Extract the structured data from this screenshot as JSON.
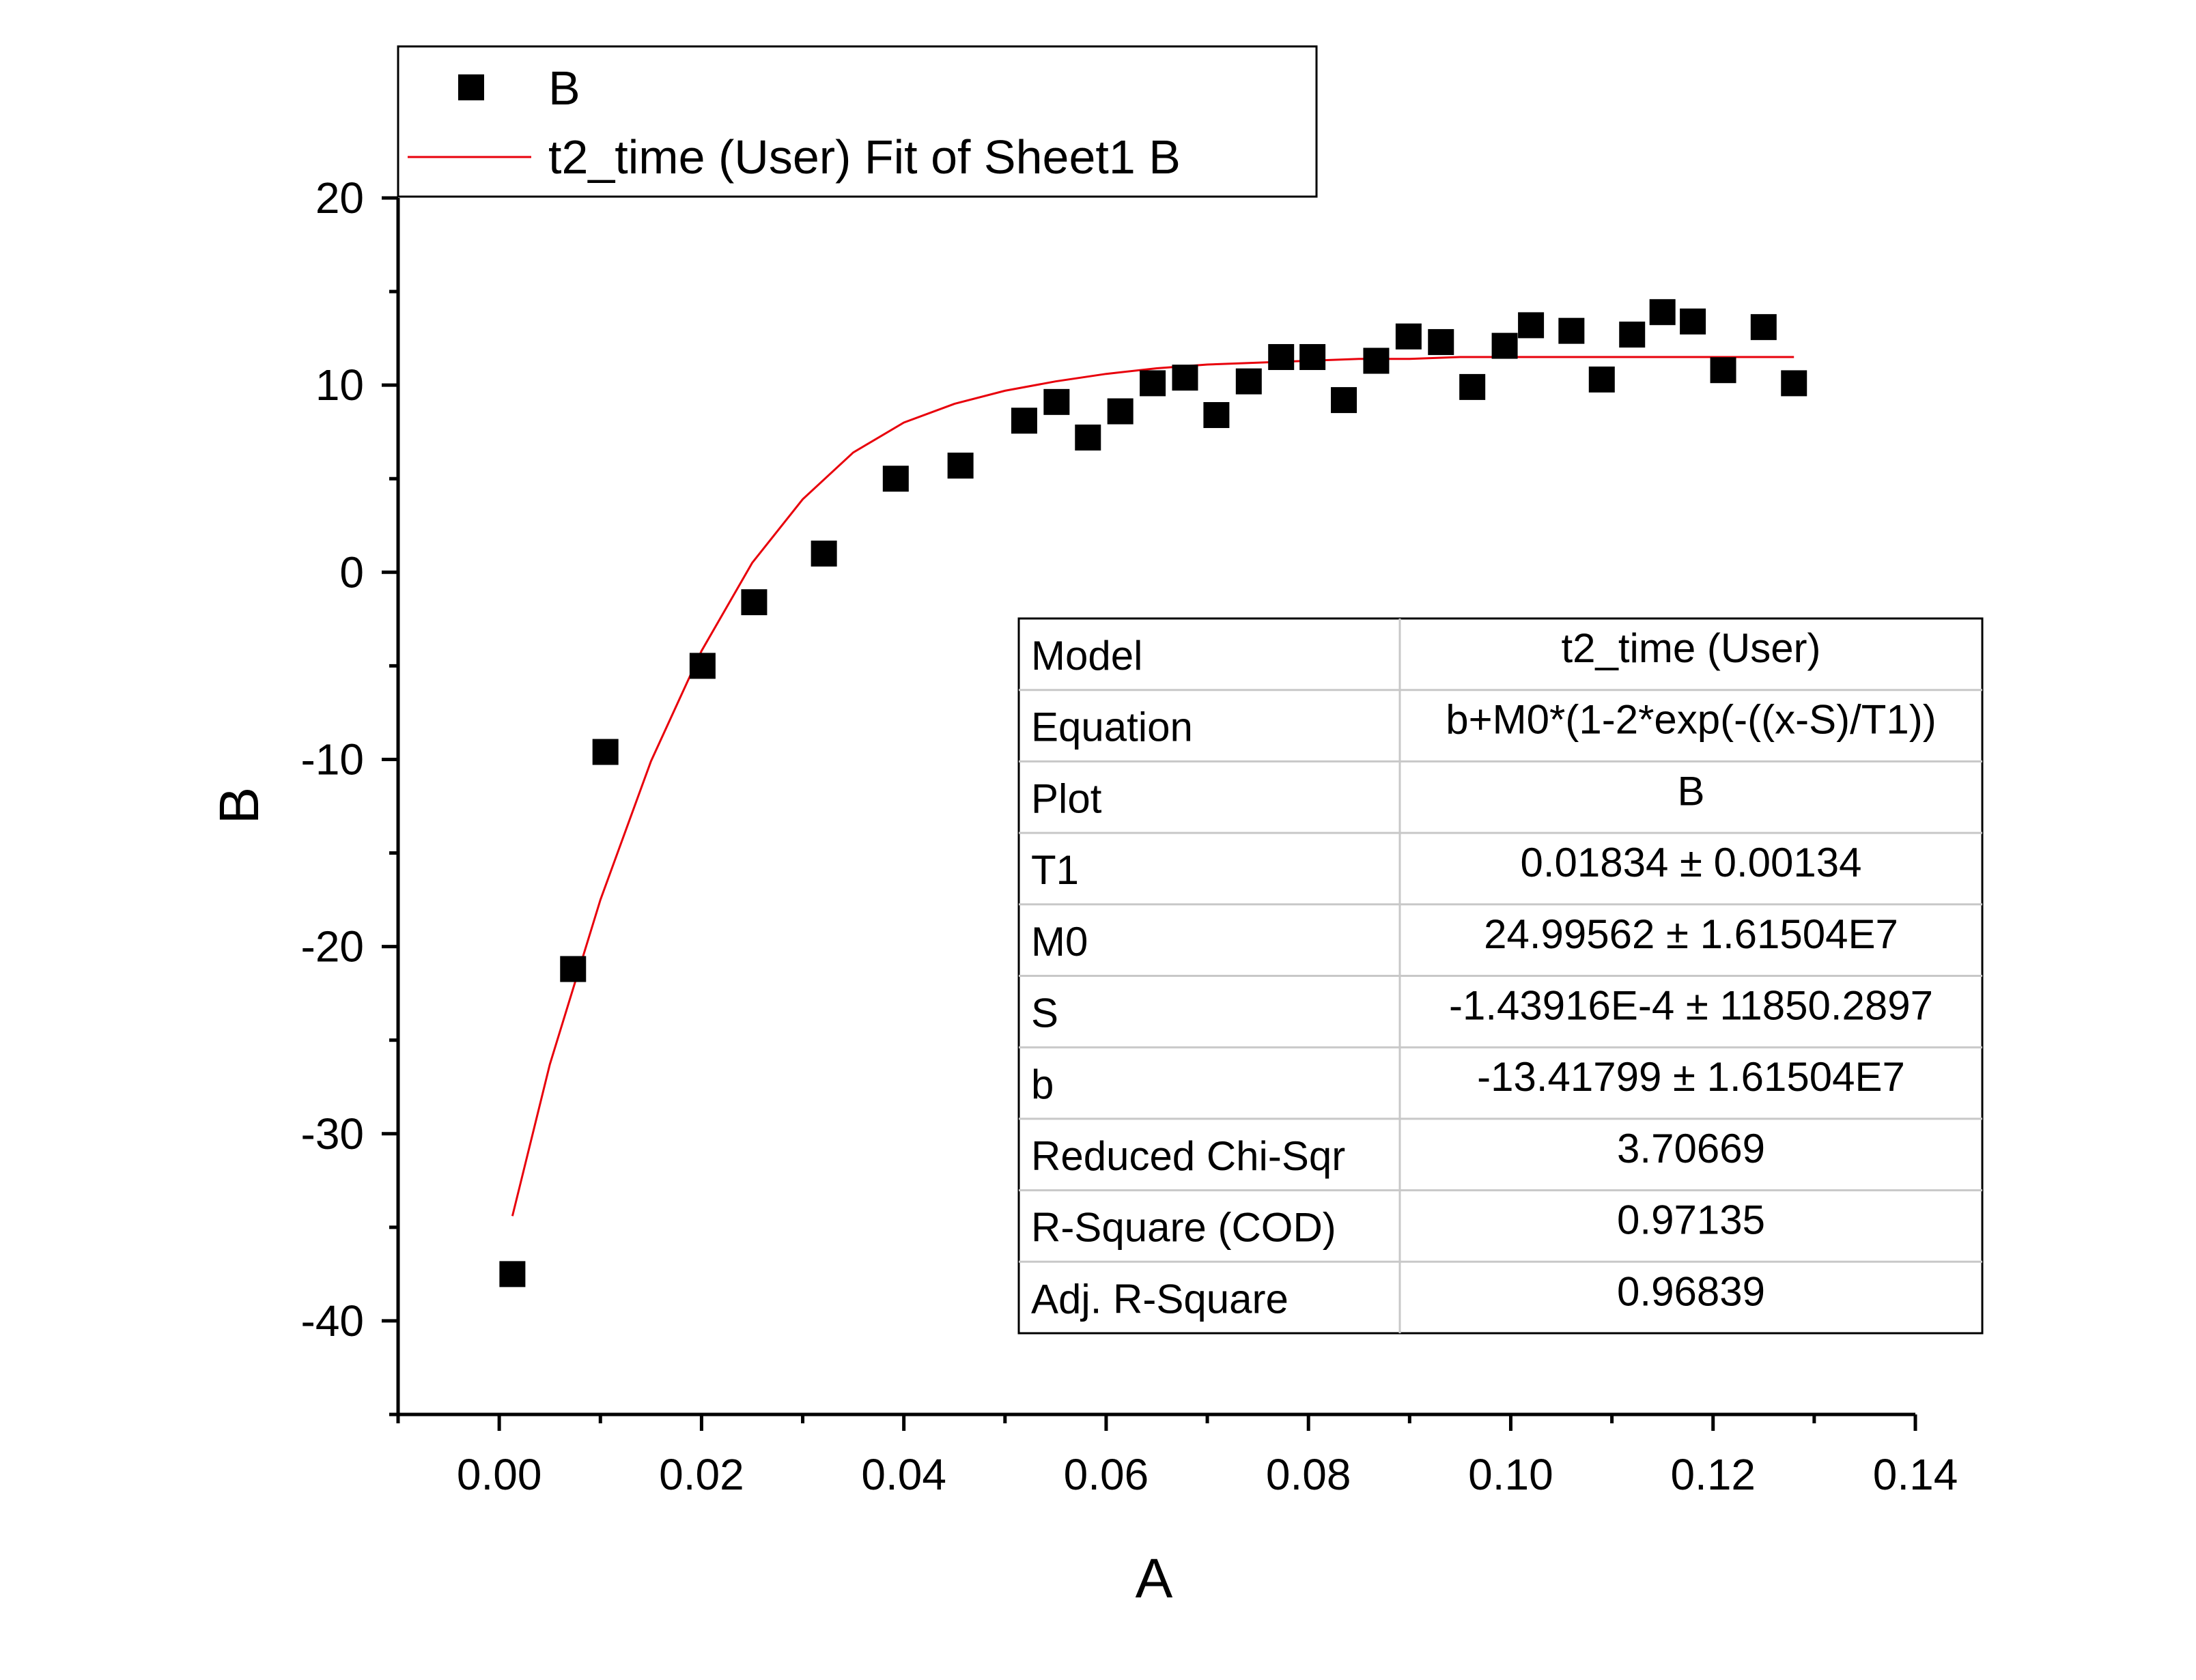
{
  "chart_data": {
    "type": "scatter",
    "xlabel": "A",
    "ylabel": "B",
    "xlim": [
      -0.01,
      0.14
    ],
    "ylim": [
      -45,
      20
    ],
    "x_ticks": [
      "0.00",
      "0.02",
      "0.04",
      "0.06",
      "0.08",
      "0.10",
      "0.12",
      "0.14"
    ],
    "y_ticks": [
      "20",
      "10",
      "0",
      "-10",
      "-20",
      "-30",
      "-40"
    ],
    "grid": false,
    "legend_position": "top-left",
    "legend": [
      {
        "label": "B",
        "marker": "square",
        "color": "#000000"
      },
      {
        "label": "t2_time (User) Fit of Sheet1 B",
        "marker": "line",
        "color": "#e8000b"
      }
    ],
    "series": [
      {
        "name": "B",
        "kind": "scatter",
        "color": "#000000",
        "x": [
          0.0013,
          0.0073,
          0.0105,
          0.0201,
          0.0252,
          0.0321,
          0.0392,
          0.0456,
          0.0519,
          0.0551,
          0.0582,
          0.0614,
          0.0646,
          0.0678,
          0.0709,
          0.0741,
          0.0773,
          0.0804,
          0.0835,
          0.0867,
          0.0899,
          0.0931,
          0.0962,
          0.0994,
          0.102,
          0.106,
          0.109,
          0.112,
          0.115,
          0.118,
          0.121,
          0.125,
          0.128
        ],
        "y": [
          -37.5,
          -21.2,
          -9.6,
          -5.0,
          -1.6,
          1.0,
          5.0,
          5.7,
          8.1,
          9.1,
          7.2,
          8.6,
          10.1,
          10.4,
          8.4,
          10.2,
          11.5,
          11.5,
          9.2,
          11.3,
          12.6,
          12.3,
          9.9,
          12.1,
          13.2,
          12.9,
          10.3,
          12.7,
          13.9,
          13.4,
          10.8,
          13.1,
          10.1
        ]
      },
      {
        "name": "t2_time (User) Fit of Sheet1 B",
        "kind": "line",
        "color": "#e8000b",
        "x": [
          0.0013,
          0.005,
          0.01,
          0.015,
          0.02,
          0.025,
          0.03,
          0.035,
          0.04,
          0.045,
          0.05,
          0.055,
          0.06,
          0.065,
          0.07,
          0.075,
          0.08,
          0.085,
          0.09,
          0.095,
          0.1,
          0.105,
          0.11,
          0.115,
          0.12,
          0.125,
          0.128
        ],
        "y": [
          -34.4,
          -26.3,
          -17.5,
          -10.1,
          -4.2,
          0.5,
          3.9,
          6.4,
          8.0,
          9.0,
          9.7,
          10.2,
          10.6,
          10.9,
          11.1,
          11.2,
          11.3,
          11.4,
          11.4,
          11.5,
          11.5,
          11.5,
          11.5,
          11.5,
          11.5,
          11.5,
          11.5
        ]
      }
    ],
    "fit_table": {
      "rows": [
        {
          "label": "Model",
          "value": "t2_time (User)"
        },
        {
          "label": "Equation",
          "value": "b+M0*(1-2*exp(-((x-S)/T1))"
        },
        {
          "label": "Plot",
          "value": "B"
        },
        {
          "label": "T1",
          "value": "0.01834 ± 0.00134"
        },
        {
          "label": "M0",
          "value": "24.99562 ± 1.61504E7"
        },
        {
          "label": "S",
          "value": "-1.43916E-4 ± 11850.2897"
        },
        {
          "label": "b",
          "value": "-13.41799 ± 1.61504E7"
        },
        {
          "label": "Reduced Chi-Sqr",
          "value": "3.70669"
        },
        {
          "label": "R-Square (COD)",
          "value": "0.97135"
        },
        {
          "label": "Adj. R-Square",
          "value": "0.96839"
        }
      ]
    }
  }
}
